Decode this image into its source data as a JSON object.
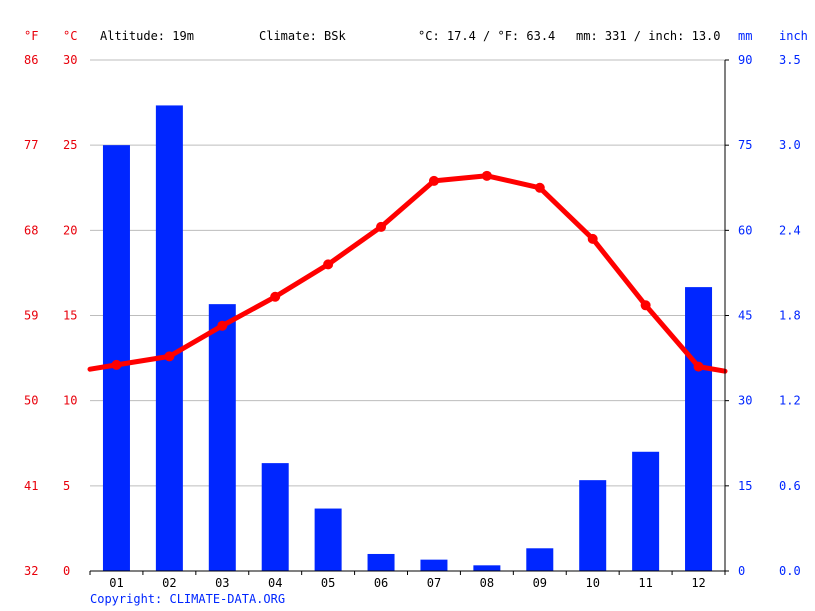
{
  "header": {
    "unit_f": "°F",
    "unit_c": "°C",
    "altitude": "Altitude: 19m",
    "climate": "Climate: BSk",
    "temp_avg": "°C: 17.4 / °F: 63.4",
    "precip_total": "mm: 331 / inch: 13.0",
    "unit_mm": "mm",
    "unit_inch": "inch"
  },
  "copyright": "Copyright: CLIMATE-DATA.ORG",
  "colors": {
    "temperature": "#ff0000",
    "precipitation": "#0026ff",
    "left_axis": "#e8000b",
    "right_axis": "#0026ff"
  },
  "chart_data": {
    "type": "bar+line",
    "categories": [
      "01",
      "02",
      "03",
      "04",
      "05",
      "06",
      "07",
      "08",
      "09",
      "10",
      "11",
      "12"
    ],
    "series": [
      {
        "kind": "bar",
        "values": [
          75,
          82,
          47,
          19,
          11,
          3,
          2,
          1,
          4,
          16,
          21,
          50
        ]
      },
      {
        "kind": "line",
        "values": [
          12.1,
          12.6,
          14.4,
          16.1,
          18.0,
          20.2,
          22.9,
          23.2,
          22.5,
          19.5,
          15.6,
          12.0
        ]
      }
    ],
    "temp_axis": {
      "ylim": [
        0,
        30
      ],
      "ticks_c": [
        "30",
        "25",
        "20",
        "15",
        "10",
        "5",
        "0"
      ],
      "ticks_f": [
        "86",
        "77",
        "68",
        "59",
        "50",
        "41",
        "32"
      ]
    },
    "precip_axis": {
      "ylim": [
        0,
        90
      ],
      "ticks_mm": [
        "90",
        "75",
        "60",
        "45",
        "30",
        "15",
        "0"
      ],
      "ticks_inch": [
        "3.5",
        "3.0",
        "2.4",
        "1.8",
        "1.2",
        "0.6",
        "0.0"
      ]
    },
    "grid": true
  }
}
